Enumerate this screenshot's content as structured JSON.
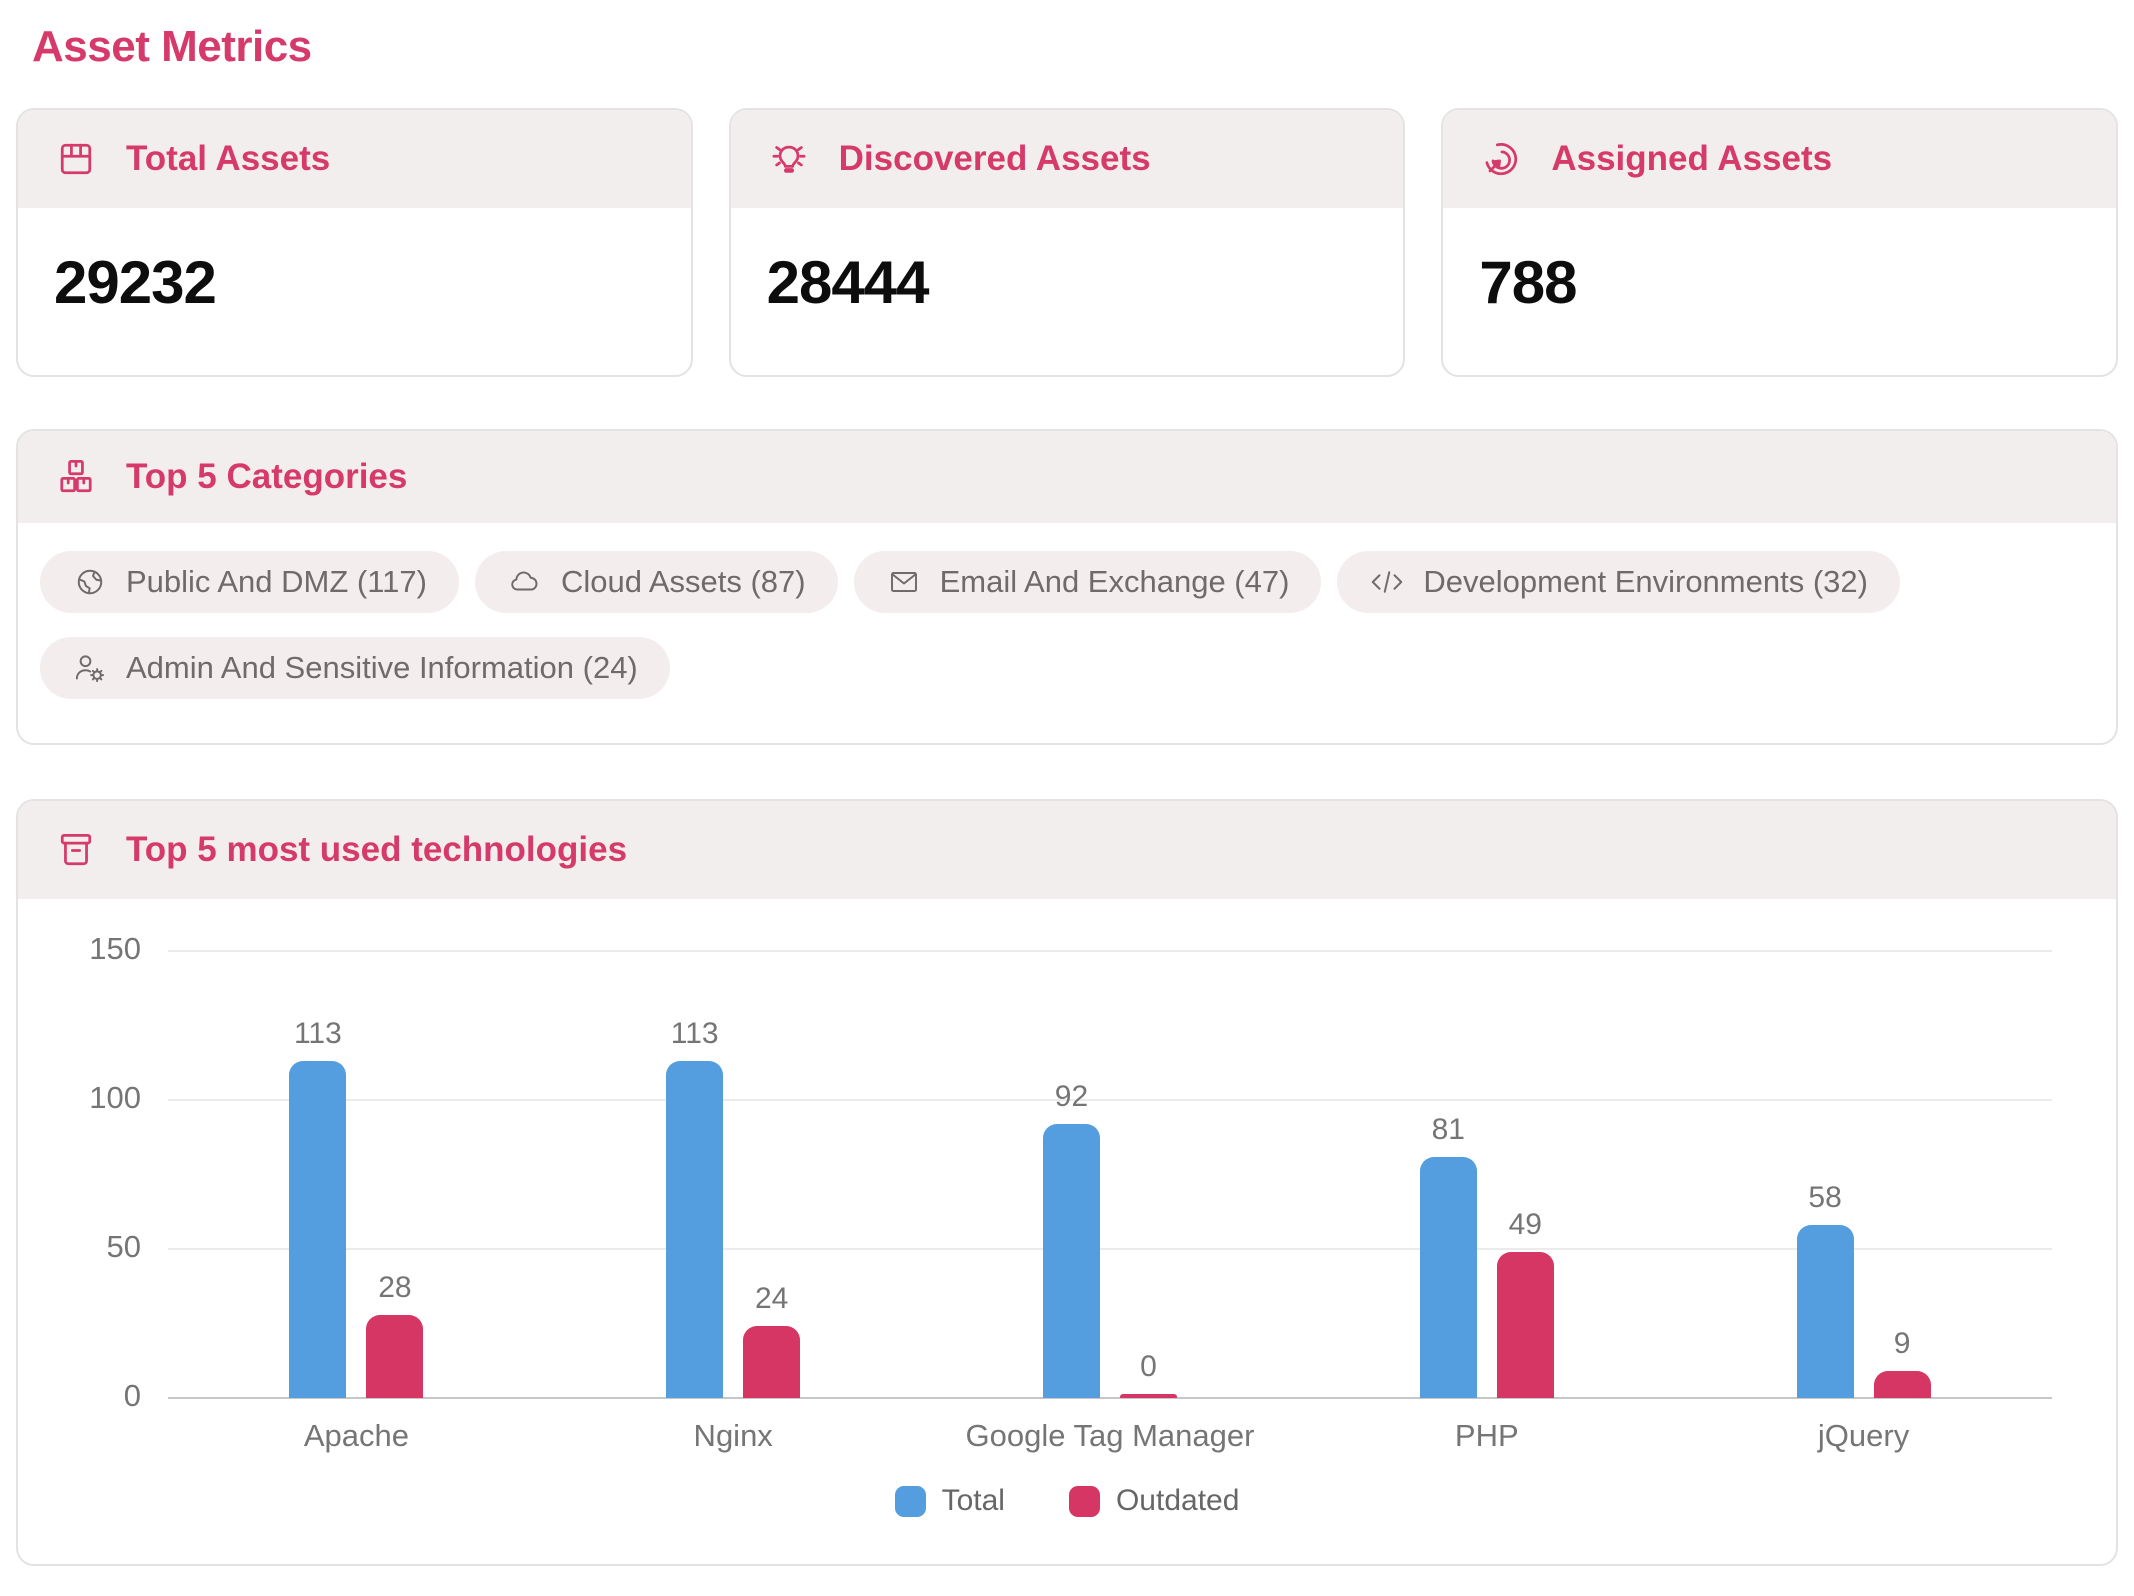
{
  "page": {
    "title": "Asset Metrics"
  },
  "colors": {
    "accent": "#d63a6b",
    "header_band": "#f3eeee",
    "bar_total": "#549dde",
    "bar_outdated": "#d53663",
    "chip_bg": "#f3eded",
    "chip_text": "#6f6b6b",
    "axis_text": "#757575"
  },
  "stat_cards": [
    {
      "label": "Total Assets",
      "value": "29232",
      "icon": "box-icon"
    },
    {
      "label": "Discovered Assets",
      "value": "28444",
      "icon": "lightbulb-icon"
    },
    {
      "label": "Assigned Assets",
      "value": "788",
      "icon": "target-icon"
    }
  ],
  "categories": {
    "title": "Top 5 Categories",
    "icon": "stacked-boxes-icon",
    "items": [
      {
        "label": "Public And DMZ (117)",
        "icon": "globe-icon"
      },
      {
        "label": "Cloud Assets (87)",
        "icon": "cloud-icon"
      },
      {
        "label": "Email And Exchange (47)",
        "icon": "envelope-icon"
      },
      {
        "label": "Development Environments (32)",
        "icon": "code-icon"
      },
      {
        "label": "Admin And Sensitive Information (24)",
        "icon": "admin-gear-icon"
      }
    ]
  },
  "chart_card": {
    "title": "Top 5 most used technologies",
    "icon": "archive-box-icon"
  },
  "chart_data": {
    "type": "bar",
    "title": "Top 5 most used technologies",
    "categories": [
      "Apache",
      "Nginx",
      "Google Tag Manager",
      "PHP",
      "jQuery"
    ],
    "series": [
      {
        "name": "Total",
        "color": "#549dde",
        "values": [
          113,
          113,
          92,
          81,
          58
        ]
      },
      {
        "name": "Outdated",
        "color": "#d53663",
        "values": [
          28,
          24,
          0,
          49,
          9
        ]
      }
    ],
    "xlabel": "",
    "ylabel": "",
    "ylim": [
      0,
      150
    ],
    "yticks": [
      0,
      50,
      100,
      150
    ],
    "grid": true,
    "legend_position": "bottom"
  }
}
